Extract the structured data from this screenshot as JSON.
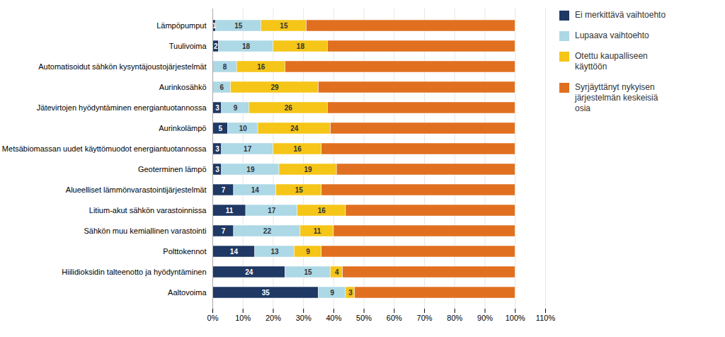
{
  "chart_data": {
    "type": "bar",
    "orientation": "horizontal",
    "stacked": true,
    "grid": true,
    "legend": "right",
    "categories": [
      "Lämpöpumput",
      "Tuulivoima",
      "Automatisoidut sähkön kysyntäjoustojärjestelmät",
      "Aurinkosähkö",
      "Jätevirtojen hyödyntäminen energiantuotannossa",
      "Aurinkolämpö",
      "Metsäbiomassan uudet käyttömuodot energiantuotannossa",
      "Geoterminen lämpö",
      "Alueelliset lämmönvarastointijärjestelmät",
      "Litium-akut sähkön varastoinnissa",
      "Sähkön muu kemiallinen varastointi",
      "Polttokennot",
      "Hiilidioksidin talteenotto ja hyödyntäminen",
      "Aaltovoima"
    ],
    "series": [
      {
        "name": "Ei merkittävä vaihtoehto",
        "color": "#1F3864",
        "data_labels": true,
        "values": [
          1,
          2,
          0,
          0,
          3,
          5,
          3,
          3,
          7,
          11,
          7,
          14,
          24,
          35
        ]
      },
      {
        "name": "Lupaava vaihtoehto",
        "color": "#ADD8E6",
        "data_labels": true,
        "values": [
          15,
          18,
          8,
          6,
          9,
          10,
          17,
          19,
          14,
          17,
          22,
          13,
          15,
          9
        ]
      },
      {
        "name": "Otettu kaupalliseen\nkäyttöön",
        "color": "#F5C518",
        "data_labels": true,
        "values": [
          15,
          18,
          16,
          29,
          26,
          24,
          16,
          19,
          15,
          16,
          11,
          9,
          4,
          3
        ]
      },
      {
        "name": "Syrjäyttänyt nykyisen\njärjestelmän keskeisiä\nosia",
        "color": "#E07020",
        "data_labels": false,
        "values": [
          69,
          62,
          76,
          65,
          62,
          61,
          64,
          59,
          64,
          56,
          60,
          64,
          57,
          53
        ]
      }
    ],
    "xlim": [
      0,
      110
    ],
    "xticks": [
      {
        "value": 0,
        "label": "0%"
      },
      {
        "value": 10,
        "label": "10%"
      },
      {
        "value": 20,
        "label": "20%"
      },
      {
        "value": 30,
        "label": "30%"
      },
      {
        "value": 40,
        "label": "40%"
      },
      {
        "value": 50,
        "label": "50%"
      },
      {
        "value": 60,
        "label": "60%"
      },
      {
        "value": 70,
        "label": "70%"
      },
      {
        "value": 80,
        "label": "80%"
      },
      {
        "value": 90,
        "label": "90%"
      },
      {
        "value": 100,
        "label": "100%"
      },
      {
        "value": 110,
        "label": "110%"
      }
    ]
  }
}
